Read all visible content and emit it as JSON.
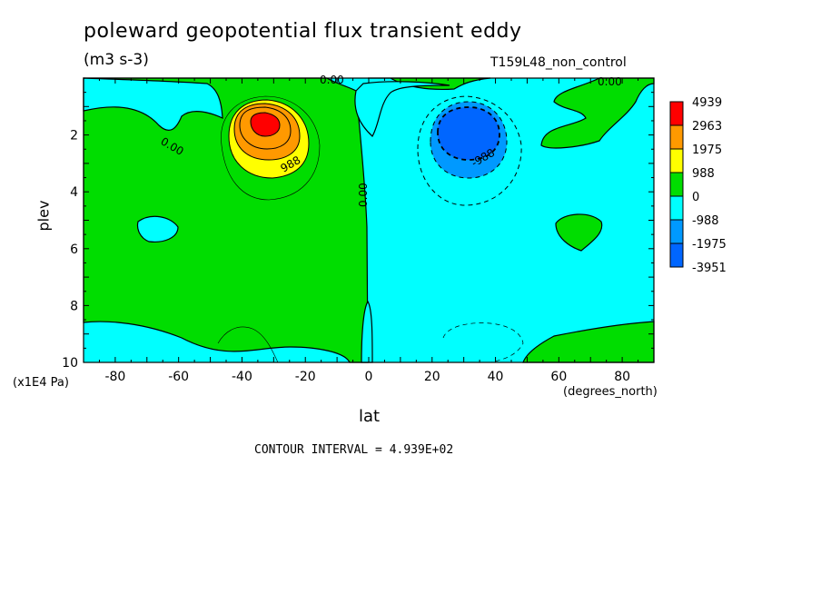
{
  "chart_data": {
    "type": "heatmap",
    "title": "poleward geopotential flux transient eddy",
    "units": "(m3 s-3)",
    "run_label": "T159L48_non_control",
    "xlabel": "lat",
    "x_units": "(degrees_north)",
    "ylabel": "plev",
    "y_units": "(x1E4 Pa)",
    "xlim": [
      -90,
      90
    ],
    "ylim": [
      10,
      0
    ],
    "x_ticks": [
      -80,
      -60,
      -40,
      -20,
      0,
      20,
      40,
      60,
      80
    ],
    "y_ticks": [
      2,
      4,
      6,
      8,
      10
    ],
    "contour_interval_text": "CONTOUR INTERVAL = 4.939E+02",
    "contour_labels": [
      "0.00",
      "0.00",
      "0.00",
      "0.00",
      "988",
      "-988"
    ],
    "colorbar": {
      "levels": [
        "4939",
        "2963",
        "1975",
        "988",
        "0",
        "-988",
        "-1975",
        "-3951"
      ],
      "colors": [
        "#ff0000",
        "#ff9900",
        "#ffff00",
        "#00dd00",
        "#00ffff",
        "#0099ff",
        "#0066ff"
      ]
    },
    "features": [
      {
        "name": "positive maximum",
        "lat": -32,
        "plev": 1.8,
        "value": 4939
      },
      {
        "name": "negative minimum",
        "lat": 32,
        "plev": 2.0,
        "value": -3951
      }
    ],
    "colors": {
      "positive": "#00dd00",
      "negative": "#00ffff"
    }
  }
}
